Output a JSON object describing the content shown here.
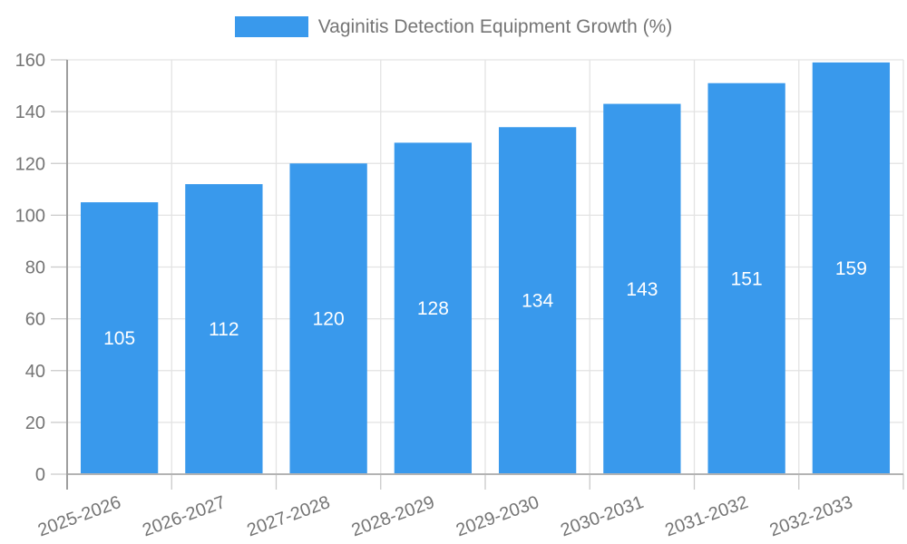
{
  "chart_data": {
    "type": "bar",
    "title": "Vaginitis Detection Equipment Growth (%)",
    "series_name": "Vaginitis Detection Equipment Growth (%)",
    "categories": [
      "2025-2026",
      "2026-2027",
      "2027-2028",
      "2028-2029",
      "2029-2030",
      "2030-2031",
      "2031-2032",
      "2032-2033"
    ],
    "values": [
      105,
      112,
      120,
      128,
      134,
      143,
      151,
      159
    ],
    "value_labels_shown": true,
    "xlabel": "",
    "ylabel": "",
    "ylim": [
      0,
      160
    ],
    "yticks": [
      0,
      20,
      40,
      60,
      80,
      100,
      120,
      140,
      160
    ],
    "legend_position": "top-center",
    "grid": true,
    "x_tick_rotation_deg": -20,
    "colors": {
      "bar": "#3999ec",
      "value_label": "#ffffff",
      "axis_text": "#757575",
      "gridline": "#e3e3e3",
      "tick": "#c9c9c9",
      "baseline": "#b3b3b3",
      "axis_line": "#9e9e9e",
      "background": "#ffffff"
    }
  }
}
